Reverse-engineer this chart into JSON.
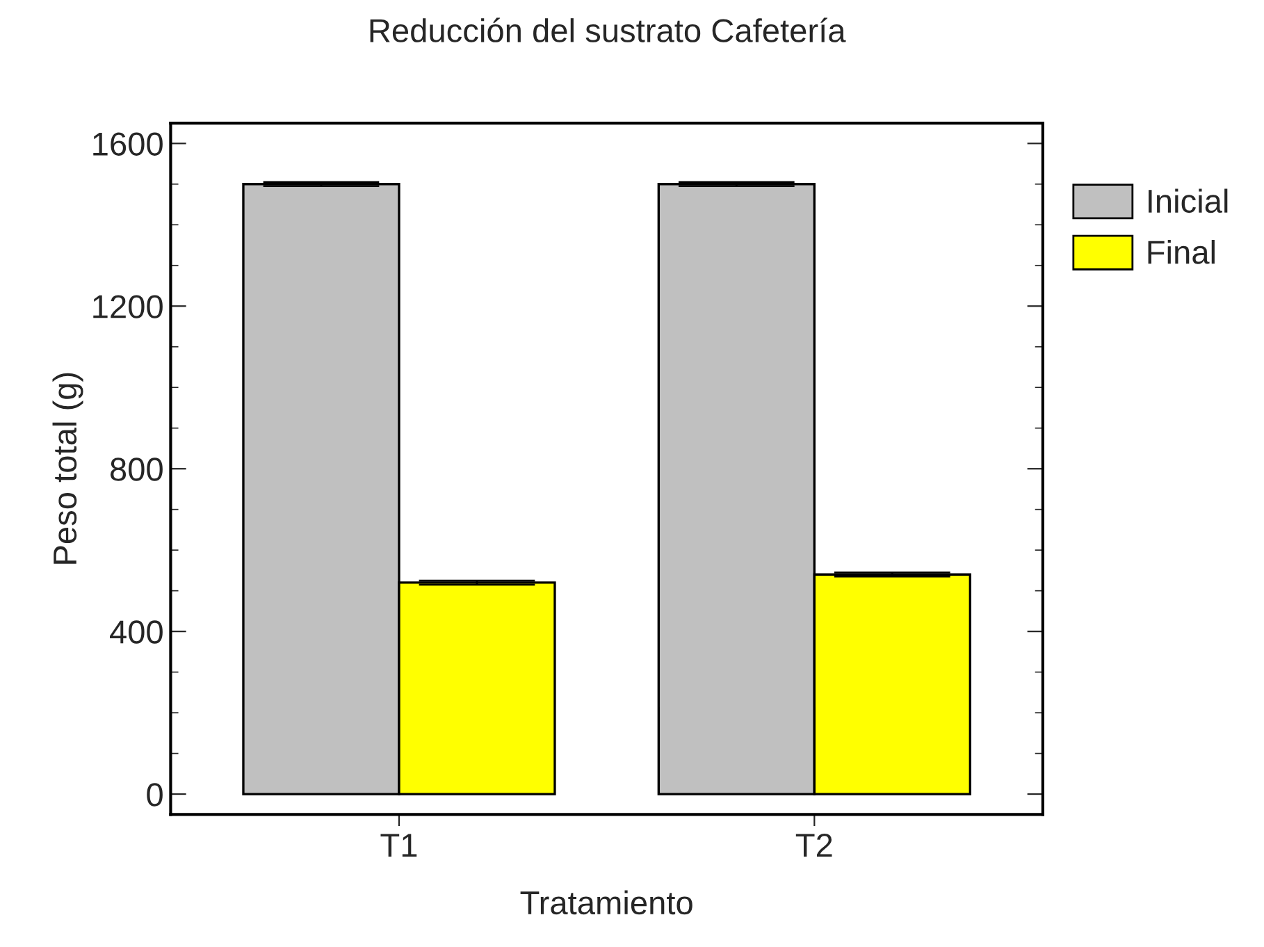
{
  "chart_data": {
    "type": "bar",
    "title": "Reducción del sustrato Cafetería",
    "xlabel": "Tratamiento",
    "ylabel": "Peso total (g)",
    "categories": [
      "T1",
      "T2"
    ],
    "series": [
      {
        "name": "Inicial",
        "color": "#c0c0c0",
        "values": [
          1500,
          1500
        ],
        "errors": [
          5,
          5
        ]
      },
      {
        "name": "Final",
        "color": "#ffff00",
        "values": [
          520,
          540
        ],
        "errors": [
          5,
          5
        ]
      }
    ],
    "ylim": [
      -50,
      1650
    ],
    "yticks": [
      0,
      400,
      800,
      1200,
      1600
    ],
    "grid": false,
    "legend": "top right"
  }
}
